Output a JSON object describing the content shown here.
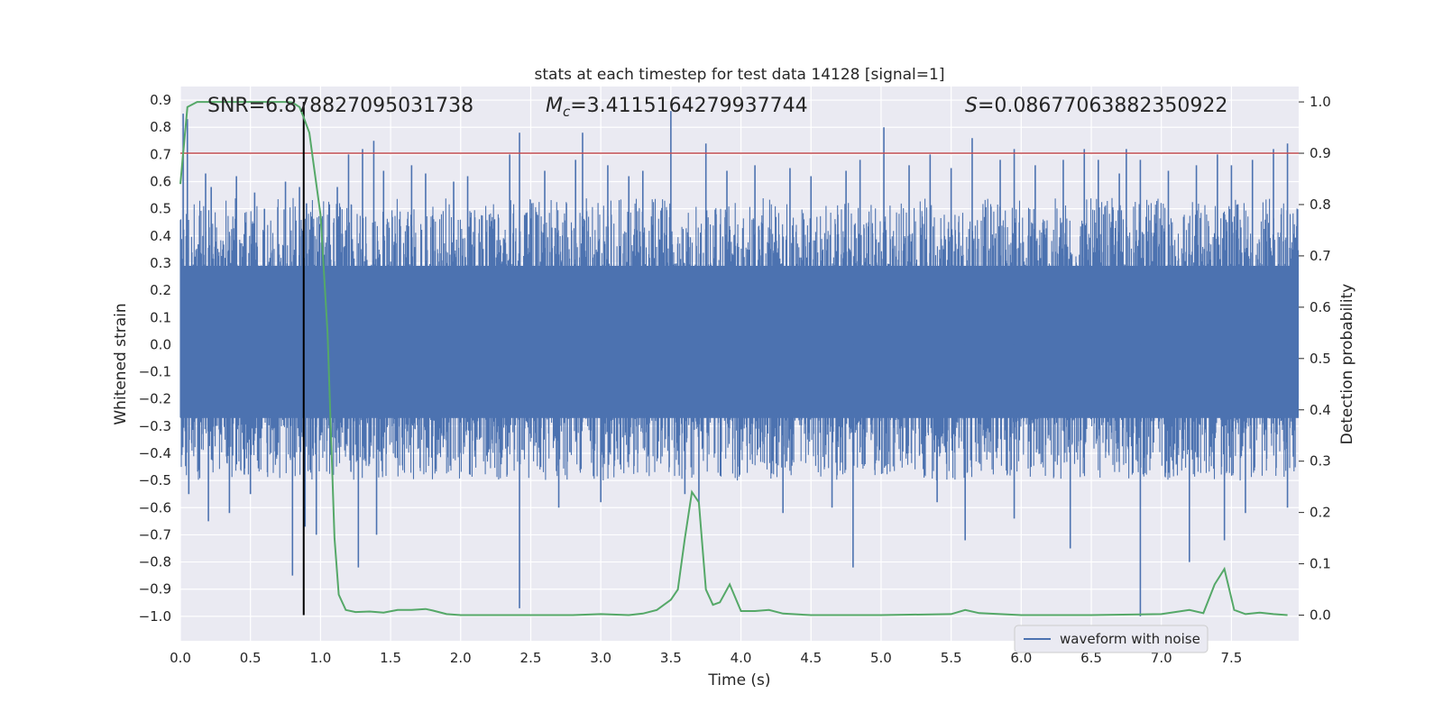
{
  "chart_data": {
    "type": "line",
    "title": "stats at each timestep for test data 14128 [signal=1]",
    "xlabel": "Time (s)",
    "ylabel": "Whitened strain",
    "y2label": "Detection probability",
    "xlim": [
      0.0,
      7.98
    ],
    "ylim": [
      -1.09,
      0.95
    ],
    "y2lim": [
      -0.05,
      1.03
    ],
    "xticks": [
      "0.0",
      "0.5",
      "1.0",
      "1.5",
      "2.0",
      "2.5",
      "3.0",
      "3.5",
      "4.0",
      "4.5",
      "5.0",
      "5.5",
      "6.0",
      "6.5",
      "7.0",
      "7.5"
    ],
    "xtick_values": [
      0.0,
      0.5,
      1.0,
      1.5,
      2.0,
      2.5,
      3.0,
      3.5,
      4.0,
      4.5,
      5.0,
      5.5,
      6.0,
      6.5,
      7.0,
      7.5
    ],
    "yticks": [
      "0.9",
      "0.8",
      "0.7",
      "0.6",
      "0.5",
      "0.4",
      "0.3",
      "0.2",
      "0.1",
      "0.0",
      "−0.1",
      "−0.2",
      "−0.3",
      "−0.4",
      "−0.5",
      "−0.6",
      "−0.7",
      "−0.8",
      "−0.9",
      "−1.0"
    ],
    "ytick_values": [
      0.9,
      0.8,
      0.7,
      0.6,
      0.5,
      0.4,
      0.3,
      0.2,
      0.1,
      0.0,
      -0.1,
      -0.2,
      -0.3,
      -0.4,
      -0.5,
      -0.6,
      -0.7,
      -0.8,
      -0.9,
      -1.0
    ],
    "y2ticks": [
      "1.0",
      "0.9",
      "0.8",
      "0.7",
      "0.6",
      "0.5",
      "0.4",
      "0.3",
      "0.2",
      "0.1",
      "0.0"
    ],
    "y2tick_values": [
      1.0,
      0.9,
      0.8,
      0.7,
      0.6,
      0.5,
      0.4,
      0.3,
      0.2,
      0.1,
      0.0
    ],
    "annotations": {
      "snr": "SNR=6.878827095031738",
      "mc_symbol": "M",
      "mc_sub": "c",
      "mc_value": "=3.4115164279937744",
      "s_symbol": "S",
      "s_value": "=0.08677063882350922"
    },
    "legend": {
      "label": "waveform with noise",
      "position": "lower-right"
    },
    "threshold": {
      "value": 0.9,
      "axis": "y2",
      "color": "#c44e52"
    },
    "vline": {
      "x": 0.88,
      "color": "#000000"
    },
    "series": [
      {
        "name": "waveform with noise",
        "color": "#4c72b0",
        "axis": "y",
        "description": "dense noise between approx -0.45 and 0.5 with spikes",
        "spikes": [
          [
            0.02,
            0.85
          ],
          [
            0.05,
            0.83
          ],
          [
            0.18,
            0.63
          ],
          [
            0.22,
            0.58
          ],
          [
            0.4,
            0.62
          ],
          [
            0.53,
            0.56
          ],
          [
            0.6,
            0.5
          ],
          [
            0.75,
            0.6
          ],
          [
            0.85,
            0.58
          ],
          [
            0.9,
            0.52
          ],
          [
            1.12,
            0.58
          ],
          [
            1.2,
            0.7
          ],
          [
            1.3,
            0.72
          ],
          [
            1.38,
            0.75
          ],
          [
            1.45,
            0.64
          ],
          [
            1.65,
            0.66
          ],
          [
            1.75,
            0.63
          ],
          [
            1.95,
            0.6
          ],
          [
            2.05,
            0.62
          ],
          [
            2.35,
            0.7
          ],
          [
            2.42,
            0.78
          ],
          [
            2.6,
            0.64
          ],
          [
            2.82,
            0.68
          ],
          [
            2.87,
            0.78
          ],
          [
            3.05,
            0.66
          ],
          [
            3.2,
            0.62
          ],
          [
            3.3,
            0.64
          ],
          [
            3.5,
            0.86
          ],
          [
            3.75,
            0.74
          ],
          [
            3.9,
            0.64
          ],
          [
            4.1,
            0.66
          ],
          [
            4.35,
            0.65
          ],
          [
            4.5,
            0.62
          ],
          [
            4.75,
            0.64
          ],
          [
            4.85,
            0.68
          ],
          [
            5.02,
            0.8
          ],
          [
            5.2,
            0.66
          ],
          [
            5.35,
            0.7
          ],
          [
            5.5,
            0.65
          ],
          [
            5.65,
            0.76
          ],
          [
            5.85,
            0.68
          ],
          [
            5.95,
            0.72
          ],
          [
            6.1,
            0.66
          ],
          [
            6.3,
            0.68
          ],
          [
            6.45,
            0.72
          ],
          [
            6.55,
            0.68
          ],
          [
            6.7,
            0.63
          ],
          [
            6.75,
            0.72
          ],
          [
            6.85,
            0.68
          ],
          [
            7.05,
            0.64
          ],
          [
            7.25,
            0.66
          ],
          [
            7.4,
            0.7
          ],
          [
            7.5,
            0.66
          ],
          [
            7.65,
            0.68
          ],
          [
            7.8,
            0.72
          ],
          [
            7.9,
            0.74
          ],
          [
            0.06,
            -0.55
          ],
          [
            0.2,
            -0.65
          ],
          [
            0.35,
            -0.62
          ],
          [
            0.5,
            -0.55
          ],
          [
            0.8,
            -0.85
          ],
          [
            0.89,
            -0.67
          ],
          [
            0.97,
            -0.7
          ],
          [
            1.27,
            -0.82
          ],
          [
            1.4,
            -0.7
          ],
          [
            2.42,
            -0.97
          ],
          [
            2.7,
            -0.6
          ],
          [
            3.0,
            -0.58
          ],
          [
            3.6,
            -0.55
          ],
          [
            3.7,
            -0.58
          ],
          [
            4.3,
            -0.62
          ],
          [
            4.65,
            -0.6
          ],
          [
            4.8,
            -0.82
          ],
          [
            5.4,
            -0.58
          ],
          [
            5.6,
            -0.72
          ],
          [
            5.95,
            -0.64
          ],
          [
            6.35,
            -0.75
          ],
          [
            6.85,
            -1.0
          ],
          [
            7.2,
            -0.8
          ],
          [
            7.45,
            -0.72
          ],
          [
            7.6,
            -0.62
          ],
          [
            7.9,
            -0.6
          ]
        ]
      },
      {
        "name": "Detection probability",
        "color": "#55a868",
        "axis": "y2",
        "x": [
          0.0,
          0.02,
          0.05,
          0.12,
          0.2,
          0.3,
          0.4,
          0.5,
          0.6,
          0.7,
          0.75,
          0.8,
          0.85,
          0.88,
          0.92,
          0.95,
          1.0,
          1.05,
          1.1,
          1.13,
          1.18,
          1.25,
          1.35,
          1.45,
          1.55,
          1.65,
          1.75,
          1.8,
          1.9,
          2.0,
          2.2,
          2.5,
          2.8,
          3.0,
          3.2,
          3.3,
          3.4,
          3.5,
          3.55,
          3.6,
          3.65,
          3.7,
          3.75,
          3.8,
          3.85,
          3.92,
          4.0,
          4.1,
          4.2,
          4.3,
          4.5,
          5.0,
          5.5,
          5.6,
          5.7,
          6.0,
          6.5,
          7.0,
          7.2,
          7.3,
          7.38,
          7.45,
          7.52,
          7.6,
          7.7,
          7.8,
          7.9
        ],
        "y": [
          0.84,
          0.9,
          0.99,
          1.0,
          1.0,
          1.0,
          1.0,
          1.0,
          1.0,
          1.0,
          1.0,
          0.999,
          0.99,
          0.97,
          0.94,
          0.88,
          0.78,
          0.55,
          0.15,
          0.04,
          0.01,
          0.006,
          0.007,
          0.005,
          0.01,
          0.01,
          0.012,
          0.009,
          0.002,
          0.0,
          0.0,
          0.0,
          0.0,
          0.002,
          0.0,
          0.003,
          0.01,
          0.03,
          0.05,
          0.15,
          0.24,
          0.22,
          0.05,
          0.02,
          0.025,
          0.06,
          0.008,
          0.008,
          0.01,
          0.003,
          0.0,
          0.0,
          0.002,
          0.01,
          0.004,
          0.0,
          0.0,
          0.002,
          0.01,
          0.004,
          0.06,
          0.09,
          0.01,
          0.002,
          0.005,
          0.002,
          0.0
        ]
      }
    ]
  }
}
